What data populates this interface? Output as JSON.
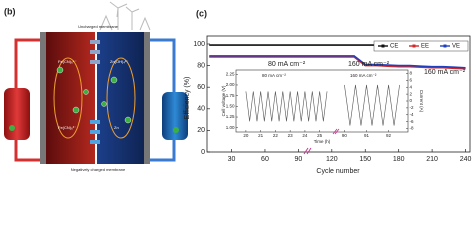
{
  "schematic": {
    "label": "(b)",
    "top_membrane": "Uncharged membrane",
    "bottom_membrane": "Negatively charged membrane",
    "left_species": [
      "Fe(CN)₆⁴⁻",
      "Fe(CN)₆³⁻"
    ],
    "right_species": [
      "Zn(OH)₄²⁻",
      "Zn"
    ]
  },
  "chart_data": {
    "type": "line",
    "label": "(c)",
    "x_label": "Cycle number",
    "y_label": "Efficiency (%)",
    "xlim": [
      8,
      244
    ],
    "ylim": [
      0,
      100
    ],
    "xticks": [
      30,
      60,
      90,
      120,
      150,
      180,
      210,
      240
    ],
    "yticks": [
      0,
      20,
      40,
      60,
      80,
      100
    ],
    "legend": "top-right",
    "x": [
      10,
      20,
      30,
      40,
      50,
      60,
      70,
      80,
      90,
      100,
      110,
      120,
      130,
      140,
      150,
      160,
      170,
      180,
      190,
      200,
      210,
      220,
      230,
      240
    ],
    "series": [
      {
        "name": "CE",
        "color": "#111111",
        "values": [
          99,
          99,
          99,
          99,
          99,
          99,
          99,
          99,
          99,
          99,
          99,
          99,
          99,
          99,
          99,
          99,
          99,
          99,
          99,
          99,
          99,
          99,
          99,
          99
        ]
      },
      {
        "name": "EE",
        "color": "#d62728",
        "values": [
          88,
          88,
          88,
          88,
          88,
          88,
          88,
          88,
          88,
          88,
          88,
          88,
          88,
          88,
          80,
          80,
          79.5,
          79,
          79,
          78.5,
          78,
          78,
          77.5,
          77
        ]
      },
      {
        "name": "VE",
        "color": "#1f3fbf",
        "values": [
          89,
          89,
          89,
          89,
          89,
          89,
          89,
          89,
          89,
          89,
          89,
          89,
          89,
          89,
          81,
          81,
          80.5,
          80,
          80,
          79.5,
          79,
          79,
          78.5,
          78
        ]
      }
    ],
    "annotations": [
      "80 mA cm⁻²",
      "160 mA cm⁻²",
      "160 mA cm⁻²"
    ],
    "inset": {
      "x_label": "Time (h)",
      "y_label": "Cell voltage (V)",
      "y2_label": "Current (A)",
      "color": "#555555",
      "series_label": "80 mA cm⁻²",
      "series_label2": "160 mA cm⁻²",
      "xlim": [
        [
          19.6,
          25.7
        ],
        [
          89.8,
          92.7
        ]
      ],
      "ylim": [
        0.9,
        2.35
      ],
      "y2lim": [
        -9,
        9
      ],
      "xticks": [
        20,
        21,
        22,
        23,
        24,
        25,
        90,
        91,
        92
      ],
      "yticks": [
        {
          "value": 1,
          "label": "1.00"
        },
        {
          "value": 1.25,
          "label": "1.25"
        },
        {
          "value": 1.5,
          "label": "1.50"
        },
        {
          "value": 1.75,
          "label": "1.75"
        },
        {
          "value": 2,
          "label": "2.00"
        },
        {
          "value": 2.25,
          "label": "2.25"
        }
      ],
      "y2ticks": [
        8,
        6,
        4,
        2,
        0,
        -2,
        -4,
        -6,
        -8
      ],
      "segments": [
        {
          "x": [
            20,
            20.25,
            20.5,
            20.75,
            21,
            21.25,
            21.5,
            21.75,
            22,
            22.25,
            22.5,
            22.75,
            23,
            23.25,
            23.5,
            23.75,
            24,
            24.25,
            24.5,
            24.75,
            25,
            25.25,
            25.5
          ],
          "values": [
            1.85,
            1.15,
            1.85,
            1.15,
            1.85,
            1.15,
            1.85,
            1.15,
            1.85,
            1.15,
            1.85,
            1.15,
            1.85,
            1.15,
            1.85,
            1.15,
            1.85,
            1.15,
            1.85,
            1.15,
            1.85,
            1.15,
            1.85
          ]
        },
        {
          "x": [
            90,
            90.25,
            90.5,
            90.75,
            91,
            91.25,
            91.5,
            91.75,
            92,
            92.25,
            92.5
          ],
          "values": [
            2.0,
            1.05,
            2.0,
            1.05,
            2.0,
            1.05,
            2.0,
            1.05,
            2.0,
            1.05,
            2.0
          ]
        }
      ]
    }
  }
}
